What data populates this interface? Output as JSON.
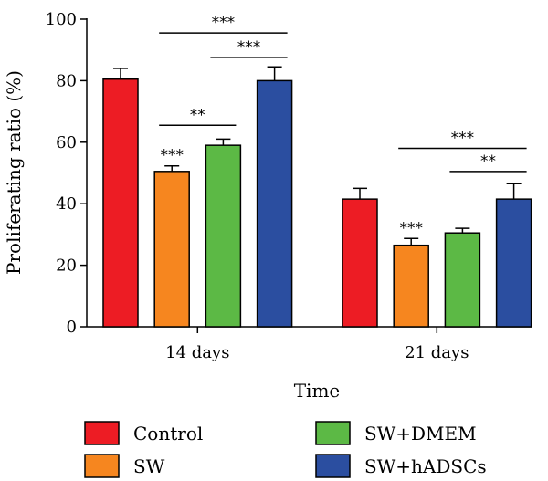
{
  "chart_data": {
    "type": "bar",
    "xlabel": "Time",
    "ylabel": "Proliferating ratio (%)",
    "ylim": [
      0,
      100
    ],
    "yticks": [
      0,
      20,
      40,
      60,
      80,
      100
    ],
    "categories": [
      "14 days",
      "21 days"
    ],
    "series": [
      {
        "name": "Control",
        "color": "#ed1c24",
        "values": [
          80.5,
          41.5
        ],
        "errors": [
          3.5,
          3.5
        ]
      },
      {
        "name": "SW",
        "color": "#f6861f",
        "values": [
          50.5,
          26.5
        ],
        "errors": [
          1.8,
          2.2
        ]
      },
      {
        "name": "SW+DMEM",
        "color": "#5cb945",
        "values": [
          59.0,
          30.5
        ],
        "errors": [
          2.0,
          1.5
        ]
      },
      {
        "name": "SW+hADSCs",
        "color": "#2b4ea0",
        "values": [
          80.0,
          41.5
        ],
        "errors": [
          4.5,
          5.0
        ]
      }
    ],
    "bar_annotations": [
      {
        "category": 0,
        "series": 1,
        "text": "***"
      },
      {
        "category": 1,
        "series": 1,
        "text": "***"
      }
    ],
    "comparisons": [
      {
        "category": 0,
        "from_series": 1,
        "to_series": 3,
        "text": "***",
        "y": 95.5
      },
      {
        "category": 0,
        "from_series": 2,
        "to_series": 3,
        "text": "***",
        "y": 87.5
      },
      {
        "category": 0,
        "from_series": 1,
        "to_series": 2,
        "text": "**",
        "y": 65.5
      },
      {
        "category": 1,
        "from_series": 1,
        "to_series": 3,
        "text": "***",
        "y": 58.0
      },
      {
        "category": 1,
        "from_series": 2,
        "to_series": 3,
        "text": "**",
        "y": 50.5
      }
    ],
    "legend_position": "bottom",
    "grid": false
  }
}
